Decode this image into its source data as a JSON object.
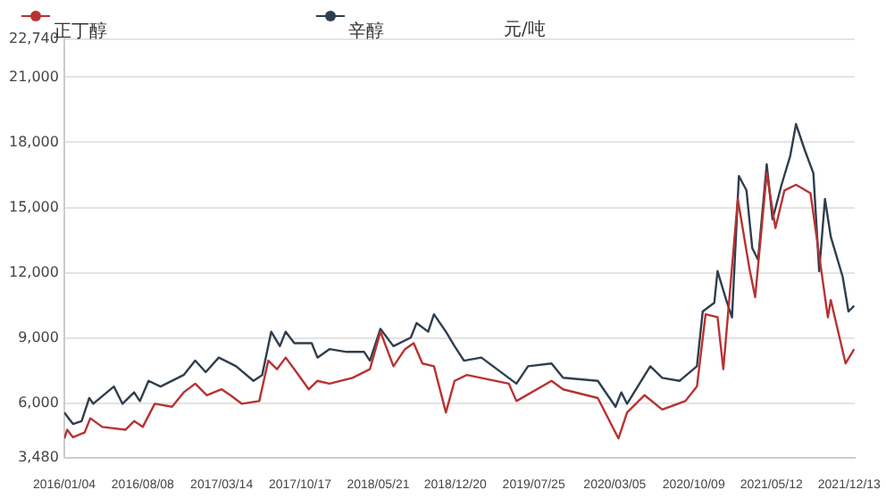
{
  "chart_data": {
    "type": "line",
    "annotations": [
      "元/吨"
    ],
    "legend": "top",
    "grid": "y",
    "marker": "none",
    "line_style": "solid",
    "xlim": [
      "2016-01-04",
      "2021-12-28"
    ],
    "xticks": [
      {
        "value": "2016-01-04",
        "label": "2016/01/04"
      },
      {
        "value": "2016-08-08",
        "label": "2016/08/08"
      },
      {
        "value": "2017-03-14",
        "label": "2017/03/14"
      },
      {
        "value": "2017-10-17",
        "label": "2017/10/17"
      },
      {
        "value": "2018-05-21",
        "label": "2018/05/21"
      },
      {
        "value": "2018-12-20",
        "label": "2018/12/20"
      },
      {
        "value": "2019-07-25",
        "label": "2019/07/25"
      },
      {
        "value": "2020-03-05",
        "label": "2020/03/05"
      },
      {
        "value": "2020-10-09",
        "label": "2020/10/09"
      },
      {
        "value": "2021-05-12",
        "label": "2021/05/12"
      },
      {
        "value": "2021-12-13",
        "label": "2021/12/13"
      }
    ],
    "ylim": [
      3480,
      22740
    ],
    "yticks": [
      {
        "value": 3480,
        "label": "3,480"
      },
      {
        "value": 6000,
        "label": "6,000"
      },
      {
        "value": 9000,
        "label": "9,000"
      },
      {
        "value": 12000,
        "label": "12,000"
      },
      {
        "value": 15000,
        "label": "15,000"
      },
      {
        "value": 18000,
        "label": "18,000"
      },
      {
        "value": 21000,
        "label": "21,000"
      },
      {
        "value": 22740,
        "label": "22,740"
      }
    ],
    "series": [
      {
        "name": "正丁醇",
        "color": "#b83232",
        "x": [
          "2016-01-04",
          "2016-01-12",
          "2016-01-28",
          "2016-02-29",
          "2016-03-16",
          "2016-04-18",
          "2016-06-21",
          "2016-07-15",
          "2016-08-08",
          "2016-09-10",
          "2016-10-28",
          "2016-11-29",
          "2016-12-31",
          "2017-02-01",
          "2017-03-14",
          "2017-04-07",
          "2017-05-09",
          "2017-06-26",
          "2017-07-21",
          "2017-08-14",
          "2017-09-07",
          "2017-10-01",
          "2017-11-10",
          "2017-12-04",
          "2018-01-06",
          "2018-03-11",
          "2018-04-28",
          "2018-05-27",
          "2018-07-02",
          "2018-08-03",
          "2018-08-27",
          "2018-09-20",
          "2018-10-22",
          "2018-11-24",
          "2018-12-18",
          "2019-01-21",
          "2019-05-17",
          "2019-06-07",
          "2019-09-12",
          "2019-10-14",
          "2020-01-18",
          "2020-03-15",
          "2020-04-08",
          "2020-05-26",
          "2020-07-14",
          "2020-09-16",
          "2020-10-18",
          "2020-11-11",
          "2020-12-14",
          "2020-12-30",
          "2021-02-08",
          "2021-03-12",
          "2021-03-28",
          "2021-04-29",
          "2021-05-23",
          "2021-06-17",
          "2021-07-19",
          "2021-08-28",
          "2021-10-15",
          "2021-10-23",
          "2021-12-03",
          "2021-12-27"
        ],
        "values": [
          4380,
          4780,
          4435,
          4650,
          5310,
          4910,
          4780,
          5180,
          4910,
          5975,
          5840,
          6500,
          6900,
          6370,
          6640,
          6370,
          5975,
          6100,
          7960,
          7565,
          8100,
          7565,
          6640,
          7030,
          6900,
          7170,
          7565,
          9290,
          7700,
          8490,
          8760,
          7830,
          7700,
          5575,
          7030,
          7300,
          6900,
          6100,
          7030,
          6640,
          6240,
          4380,
          5575,
          6370,
          5710,
          6100,
          6770,
          10090,
          9960,
          7565,
          15390,
          12210,
          10880,
          16580,
          14060,
          15790,
          16050,
          15660,
          9950,
          10750,
          7830,
          8490
        ]
      },
      {
        "name": "辛醇",
        "color": "#2f3e4e",
        "x": [
          "2016-01-04",
          "2016-01-28",
          "2016-02-21",
          "2016-03-13",
          "2016-03-24",
          "2016-05-20",
          "2016-06-13",
          "2016-07-15",
          "2016-07-31",
          "2016-08-24",
          "2016-09-26",
          "2016-11-29",
          "2016-12-31",
          "2017-01-29",
          "2017-03-06",
          "2017-04-23",
          "2017-06-10",
          "2017-07-04",
          "2017-07-29",
          "2017-08-22",
          "2017-09-07",
          "2017-10-01",
          "2017-11-18",
          "2017-12-04",
          "2018-01-06",
          "2018-02-23",
          "2018-04-12",
          "2018-04-28",
          "2018-05-27",
          "2018-07-02",
          "2018-08-19",
          "2018-09-04",
          "2018-10-06",
          "2018-10-22",
          "2018-11-24",
          "2018-12-18",
          "2019-01-13",
          "2019-03-02",
          "2019-06-07",
          "2019-07-09",
          "2019-09-12",
          "2019-10-14",
          "2020-01-18",
          "2020-03-07",
          "2020-03-23",
          "2020-04-08",
          "2020-06-11",
          "2020-07-14",
          "2020-08-31",
          "2020-10-18",
          "2020-11-03",
          "2020-12-05",
          "2020-12-14",
          "2021-01-07",
          "2021-01-23",
          "2021-02-11",
          "2021-03-04",
          "2021-03-20",
          "2021-04-05",
          "2021-04-29",
          "2021-05-15",
          "2021-06-09",
          "2021-07-03",
          "2021-07-19",
          "2021-08-12",
          "2021-09-05",
          "2021-09-21",
          "2021-10-07",
          "2021-10-23",
          "2021-11-25",
          "2021-12-11",
          "2021-12-27"
        ],
        "values": [
          5575,
          5045,
          5180,
          6240,
          5975,
          6770,
          5975,
          6500,
          6100,
          7030,
          6770,
          7300,
          7960,
          7430,
          8100,
          7700,
          7030,
          7300,
          9290,
          8625,
          9290,
          8760,
          8760,
          8100,
          8490,
          8360,
          8360,
          7960,
          9420,
          8625,
          9020,
          9690,
          9290,
          10090,
          9290,
          8625,
          7960,
          8100,
          6900,
          7700,
          7830,
          7170,
          7030,
          5840,
          6500,
          5975,
          7700,
          7170,
          7030,
          7700,
          10220,
          10620,
          12075,
          10750,
          9950,
          16450,
          15790,
          13135,
          12600,
          16990,
          14460,
          16050,
          17380,
          18840,
          17650,
          16580,
          12075,
          15390,
          13665,
          11810,
          10220,
          10480
        ]
      }
    ]
  }
}
